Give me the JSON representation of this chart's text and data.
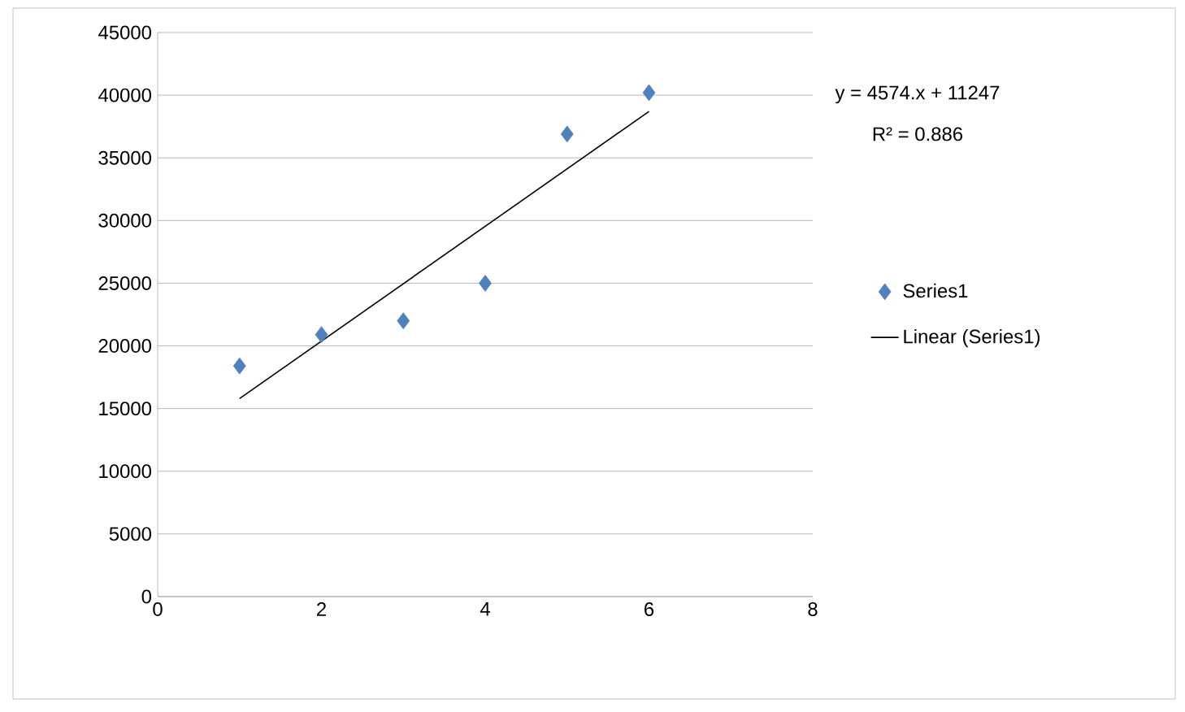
{
  "chart_data": {
    "type": "scatter",
    "series": [
      {
        "name": "Series1",
        "color": "#4f81bd",
        "marker": "diamond",
        "x": [
          1,
          2,
          3,
          4,
          5,
          6
        ],
        "values": [
          18400,
          20900,
          22000,
          25000,
          36900,
          40200
        ]
      },
      {
        "name": "Linear (Series1)",
        "type": "line",
        "color": "#000000",
        "marker": "none",
        "line_style": "solid",
        "x": [
          1,
          6
        ],
        "values": [
          15800,
          38700
        ]
      }
    ],
    "xlim": [
      0,
      8
    ],
    "xticks": [
      0,
      2,
      4,
      6,
      8
    ],
    "ylim": [
      0,
      45000
    ],
    "yticks": [
      0,
      5000,
      10000,
      15000,
      20000,
      25000,
      30000,
      35000,
      40000,
      45000
    ],
    "grid": "y",
    "legend": "right",
    "annotations": [
      "y = 4574.x + 11247",
      "R² = 0.886"
    ]
  }
}
